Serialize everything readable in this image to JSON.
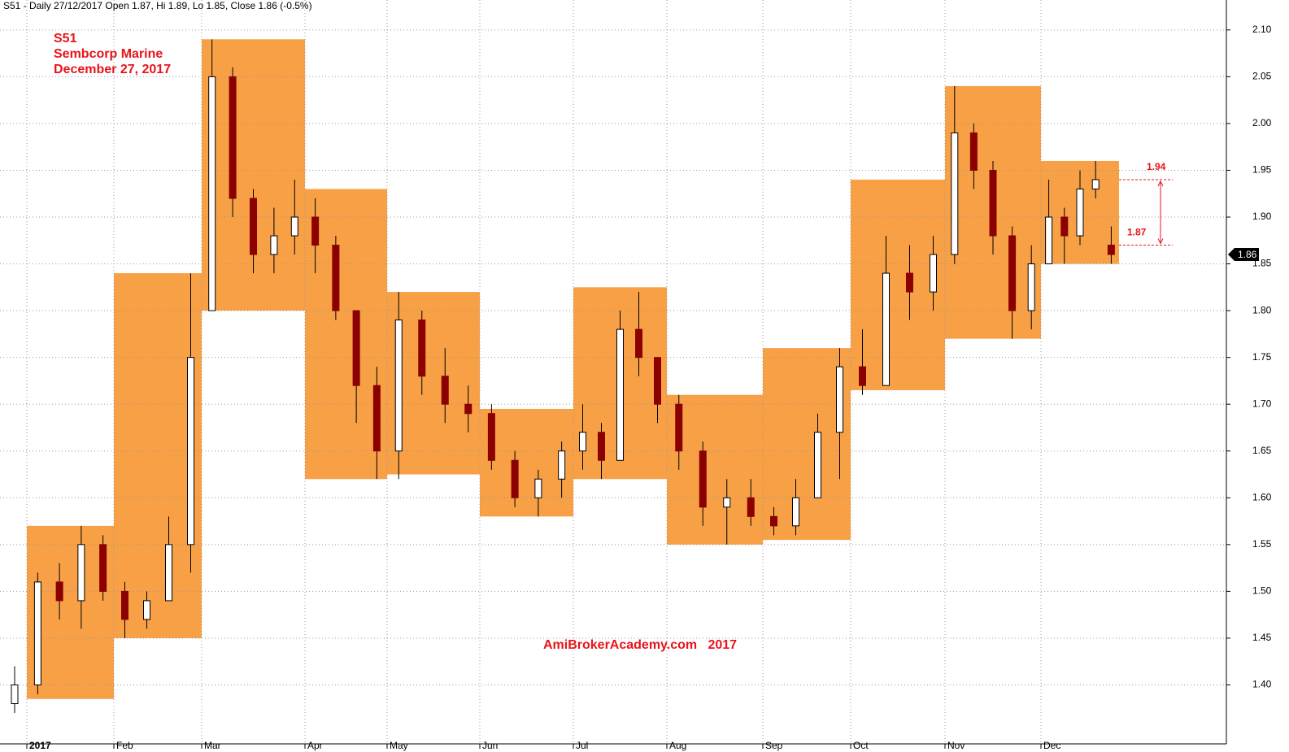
{
  "chart_data": {
    "type": "candlestick",
    "header": "S51 - Daily 27/12/2017 Open 1.87, Hi 1.89, Lo 1.85, Close 1.86 (-0.5%)",
    "annotations": [
      "S51",
      "Sembcorp Marine",
      "December 27, 2017"
    ],
    "watermark": "AmiBrokerAcademy.com   2017",
    "ylim": [
      1.337,
      2.132
    ],
    "yticks": [
      {
        "value": 1.4,
        "label": "1.40"
      },
      {
        "value": 1.45,
        "label": "1.45"
      },
      {
        "value": 1.5,
        "label": "1.50"
      },
      {
        "value": 1.55,
        "label": "1.55"
      },
      {
        "value": 1.6,
        "label": "1.60"
      },
      {
        "value": 1.65,
        "label": "1.65"
      },
      {
        "value": 1.7,
        "label": "1.70"
      },
      {
        "value": 1.75,
        "label": "1.75"
      },
      {
        "value": 1.8,
        "label": "1.80"
      },
      {
        "value": 1.85,
        "label": "1.85"
      },
      {
        "value": 1.9,
        "label": "1.90"
      },
      {
        "value": 1.95,
        "label": "1.95"
      },
      {
        "value": 2.0,
        "label": "2.00"
      },
      {
        "value": 2.05,
        "label": "2.05"
      },
      {
        "value": 2.1,
        "label": "2.10"
      }
    ],
    "grid": true,
    "up_color": "#ffffff",
    "down_color": "#8b0000",
    "box_color": "#f7a045",
    "level_color": "#e8141b",
    "levels": [
      1.94,
      1.87
    ],
    "last_price": 1.86,
    "months": [
      {
        "label": null,
        "range": null,
        "candles": [
          [
            1.38,
            1.42,
            1.37,
            1.4
          ]
        ]
      },
      {
        "label": "2017",
        "range": [
          1.385,
          1.57
        ],
        "candles": [
          [
            1.4,
            1.52,
            1.39,
            1.51
          ],
          [
            1.51,
            1.53,
            1.47,
            1.49
          ],
          [
            1.49,
            1.57,
            1.46,
            1.55
          ],
          [
            1.55,
            1.56,
            1.49,
            1.5
          ]
        ]
      },
      {
        "label": "Feb",
        "range": [
          1.45,
          1.84
        ],
        "candles": [
          [
            1.5,
            1.51,
            1.45,
            1.47
          ],
          [
            1.47,
            1.5,
            1.46,
            1.49
          ],
          [
            1.49,
            1.58,
            1.49,
            1.55
          ],
          [
            1.55,
            1.84,
            1.52,
            1.75
          ]
        ]
      },
      {
        "label": "Mar",
        "range": [
          1.8,
          2.09
        ],
        "candles": [
          [
            1.8,
            2.09,
            1.8,
            2.05
          ],
          [
            2.05,
            2.06,
            1.9,
            1.92
          ],
          [
            1.92,
            1.93,
            1.84,
            1.86
          ],
          [
            1.86,
            1.91,
            1.84,
            1.88
          ],
          [
            1.88,
            1.94,
            1.86,
            1.9
          ]
        ]
      },
      {
        "label": "Apr",
        "range": [
          1.62,
          1.93
        ],
        "candles": [
          [
            1.9,
            1.92,
            1.84,
            1.87
          ],
          [
            1.87,
            1.88,
            1.79,
            1.8
          ],
          [
            1.8,
            1.8,
            1.68,
            1.72
          ],
          [
            1.72,
            1.74,
            1.62,
            1.65
          ]
        ]
      },
      {
        "label": "May",
        "range": [
          1.625,
          1.82
        ],
        "candles": [
          [
            1.65,
            1.82,
            1.62,
            1.79
          ],
          [
            1.79,
            1.8,
            1.71,
            1.73
          ],
          [
            1.73,
            1.76,
            1.68,
            1.7
          ],
          [
            1.7,
            1.72,
            1.67,
            1.69
          ]
        ]
      },
      {
        "label": "Jun",
        "range": [
          1.58,
          1.695
        ],
        "candles": [
          [
            1.69,
            1.7,
            1.63,
            1.64
          ],
          [
            1.64,
            1.65,
            1.59,
            1.6
          ],
          [
            1.6,
            1.63,
            1.58,
            1.62
          ],
          [
            1.62,
            1.66,
            1.6,
            1.65
          ]
        ]
      },
      {
        "label": "Jul",
        "range": [
          1.62,
          1.825
        ],
        "candles": [
          [
            1.65,
            1.7,
            1.63,
            1.67
          ],
          [
            1.67,
            1.68,
            1.62,
            1.64
          ],
          [
            1.64,
            1.8,
            1.64,
            1.78
          ],
          [
            1.78,
            1.82,
            1.73,
            1.75
          ],
          [
            1.75,
            1.75,
            1.68,
            1.7
          ]
        ]
      },
      {
        "label": "Aug",
        "range": [
          1.55,
          1.71
        ],
        "candles": [
          [
            1.7,
            1.71,
            1.63,
            1.65
          ],
          [
            1.65,
            1.66,
            1.57,
            1.59
          ],
          [
            1.59,
            1.62,
            1.55,
            1.6
          ],
          [
            1.6,
            1.62,
            1.57,
            1.58
          ]
        ]
      },
      {
        "label": "Sep",
        "range": [
          1.555,
          1.76
        ],
        "candles": [
          [
            1.58,
            1.59,
            1.56,
            1.57
          ],
          [
            1.57,
            1.62,
            1.56,
            1.6
          ],
          [
            1.6,
            1.69,
            1.6,
            1.67
          ],
          [
            1.67,
            1.76,
            1.62,
            1.74
          ]
        ]
      },
      {
        "label": "Oct",
        "range": [
          1.715,
          1.94
        ],
        "candles": [
          [
            1.74,
            1.78,
            1.71,
            1.72
          ],
          [
            1.72,
            1.88,
            1.72,
            1.84
          ],
          [
            1.84,
            1.87,
            1.79,
            1.82
          ],
          [
            1.82,
            1.88,
            1.8,
            1.86
          ]
        ]
      },
      {
        "label": "Nov",
        "range": [
          1.77,
          2.04
        ],
        "candles": [
          [
            1.86,
            2.04,
            1.85,
            1.99
          ],
          [
            1.99,
            2.0,
            1.93,
            1.95
          ],
          [
            1.95,
            1.96,
            1.86,
            1.88
          ],
          [
            1.88,
            1.89,
            1.77,
            1.8
          ],
          [
            1.8,
            1.87,
            1.78,
            1.85
          ]
        ]
      },
      {
        "label": "Dec",
        "range": [
          1.85,
          1.96
        ],
        "candles": [
          [
            1.85,
            1.94,
            1.85,
            1.9
          ],
          [
            1.9,
            1.91,
            1.85,
            1.88
          ],
          [
            1.88,
            1.95,
            1.87,
            1.93
          ],
          [
            1.93,
            1.96,
            1.92,
            1.94
          ],
          [
            1.87,
            1.89,
            1.85,
            1.86
          ]
        ]
      }
    ]
  }
}
